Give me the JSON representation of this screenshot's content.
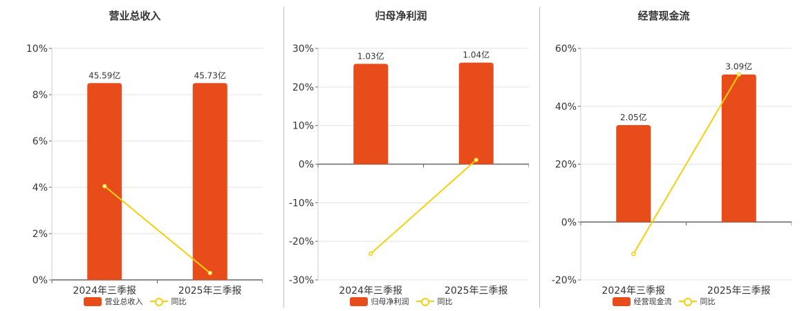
{
  "colors": {
    "bar": "#e84c1a",
    "line": "#f2d00d",
    "axis": "#666666",
    "grid": "#e3e3e3",
    "text": "#333333"
  },
  "chart_data": [
    {
      "type": "bar",
      "title": "营业总收入",
      "categories": [
        "2024年三季报",
        "2025年三季报"
      ],
      "ylim": [
        0,
        10
      ],
      "yticks": [
        "0%",
        "2%",
        "4%",
        "6%",
        "8%",
        "10%"
      ],
      "ytick_values": [
        0,
        2,
        4,
        6,
        8,
        10
      ],
      "bar_values_on_axis": [
        8.5,
        8.5
      ],
      "bar_labels": [
        "45.59亿",
        "45.73亿"
      ],
      "line_values": [
        4.05,
        0.3
      ],
      "legend": {
        "bar": "营业总收入",
        "line": "同比"
      },
      "grid": true
    },
    {
      "type": "bar",
      "title": "归母净利润",
      "categories": [
        "2024年三季报",
        "2025年三季报"
      ],
      "ylim": [
        -30,
        30
      ],
      "yticks": [
        "-30%",
        "-20%",
        "-10%",
        "0%",
        "10%",
        "20%",
        "30%"
      ],
      "ytick_values": [
        -30,
        -20,
        -10,
        0,
        10,
        20,
        30
      ],
      "bar_values_on_axis": [
        26.0,
        26.3
      ],
      "bar_labels": [
        "1.03亿",
        "1.04亿"
      ],
      "line_values": [
        -23.2,
        1.1
      ],
      "legend": {
        "bar": "归母净利润",
        "line": "同比"
      },
      "grid": true
    },
    {
      "type": "bar",
      "title": "经营现金流",
      "categories": [
        "2024年三季报",
        "2025年三季报"
      ],
      "ylim": [
        -20,
        60
      ],
      "yticks": [
        "-20%",
        "0%",
        "20%",
        "40%",
        "60%"
      ],
      "ytick_values": [
        -20,
        0,
        20,
        40,
        60
      ],
      "bar_values_on_axis": [
        33.5,
        51.0
      ],
      "bar_labels": [
        "2.05亿",
        "3.09亿"
      ],
      "line_values": [
        -11.0,
        51.0
      ],
      "legend": {
        "bar": "经营现金流",
        "line": "同比"
      },
      "grid": true
    }
  ]
}
